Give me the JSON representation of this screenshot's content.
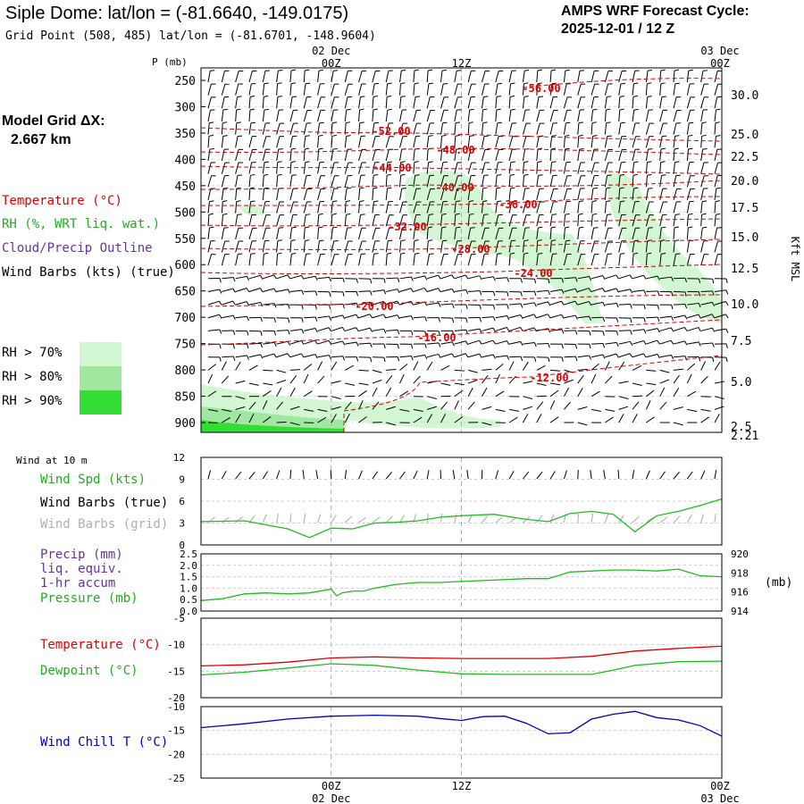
{
  "header": {
    "title": "Siple Dome:  lat/lon = (-81.6640, -149.0175)",
    "subtitle": "Grid Point (508, 485) lat/lon = (-81.6701, -148.9604)",
    "cycle_label": "AMPS WRF Forecast Cycle:",
    "cycle_value": "2025-12-01 / 12  Z",
    "grid_label": "Model Grid ΔX:",
    "grid_value": "2.667 km"
  },
  "legend": {
    "temperature": "Temperature (°C)",
    "rh": "RH (%, WRT liq. wat.)",
    "cloud": "Cloud/Precip Outline",
    "wind": "Wind Barbs (kts) (true)",
    "rh70": "RH > 70%",
    "rh80": "RH > 80%",
    "rh90": "RH > 90%",
    "rh_colors": [
      "#d2f7d2",
      "#a0e8a0",
      "#33dd33"
    ]
  },
  "time_axis": {
    "top_dates": [
      "02 Dec",
      "03 Dec"
    ],
    "labels": [
      "00Z",
      "12Z",
      "00Z"
    ],
    "bottom_dates": [
      "02 Dec",
      "03 Dec"
    ]
  },
  "chart_data": [
    {
      "type": "line",
      "name": "sounding-cross-section",
      "left_axis_title": "P (mb)",
      "right_axis_title": "Kft MSL",
      "pressure_ticks": [
        250,
        300,
        350,
        400,
        450,
        500,
        550,
        600,
        650,
        700,
        750,
        800,
        850,
        900
      ],
      "height_ticks": [
        "30.0",
        "25.0",
        "22.5",
        "20.0",
        "17.5",
        "15.0",
        "12.5",
        "10.0",
        "7.5",
        "5.0",
        "2.5",
        "2.21"
      ],
      "temperature_contours": [
        "-56.00",
        "-52.00",
        "-48.00",
        "-44.00",
        "-40.00",
        "-36.00",
        "-32.00",
        "-28.00",
        "-24.00",
        "-20.00",
        "-16.00",
        "-12.00"
      ],
      "colors": {
        "temperature": "#dd0000",
        "rh": "#22bb22",
        "barb": "#000000"
      }
    },
    {
      "type": "line",
      "name": "surface-wind",
      "title": "Wind at 10 m",
      "series_labels": [
        "Wind Spd (kts)",
        "Wind Barbs (true)",
        "Wind Barbs (grid)"
      ],
      "ylim": [
        0,
        12
      ],
      "yticks": [
        0,
        3,
        6,
        9,
        12
      ],
      "series": [
        {
          "name": "Wind Spd (kts)",
          "color": "#22bb22",
          "x": [
            0,
            4,
            8,
            10,
            12,
            14,
            16,
            18,
            20,
            22,
            24,
            27,
            30,
            32,
            34,
            36,
            38,
            40,
            42,
            44,
            46,
            48
          ],
          "values": [
            3.2,
            3.3,
            2.2,
            1.0,
            2.3,
            2.2,
            3.0,
            3.1,
            3.3,
            3.8,
            4.0,
            4.2,
            3.5,
            3.2,
            4.3,
            4.6,
            4.2,
            1.8,
            4.0,
            4.6,
            5.4,
            6.3
          ]
        }
      ]
    },
    {
      "type": "line",
      "name": "precip-pressure",
      "series_labels": [
        "Precip (mm)",
        "liq. equiv.",
        "1-hr accum",
        "Pressure (mb)"
      ],
      "right_unit": "(mb)",
      "left_ylim": [
        0,
        2.5
      ],
      "left_yticks": [
        "0.0",
        "0.5",
        "1.0",
        "1.5",
        "2.0",
        "2.5"
      ],
      "right_ylim": [
        914,
        920
      ],
      "right_yticks": [
        914,
        916,
        918,
        920
      ],
      "series": [
        {
          "name": "Pressure (mb)",
          "color": "#22bb22",
          "axis": "right",
          "x": [
            0,
            2,
            4,
            6,
            8,
            10,
            12,
            12.5,
            13,
            14,
            15,
            16,
            17,
            18,
            20,
            22,
            24,
            26,
            28,
            30,
            32,
            34,
            36,
            38,
            40,
            42,
            44,
            46,
            48
          ],
          "values": [
            915.1,
            915.3,
            915.8,
            915.9,
            915.8,
            915.9,
            916.3,
            915.6,
            915.9,
            916.1,
            916.1,
            916.4,
            916.6,
            916.8,
            917.0,
            917.0,
            917.1,
            917.2,
            917.3,
            917.4,
            917.4,
            918.1,
            918.2,
            918.3,
            918.3,
            918.2,
            918.4,
            917.7,
            917.6
          ]
        }
      ]
    },
    {
      "type": "line",
      "name": "temperature-dewpoint",
      "series_labels": [
        "Temperature (°C)",
        "Dewpoint (°C)"
      ],
      "ylim": [
        -20,
        -5
      ],
      "yticks": [
        "-5",
        "-10",
        "-15",
        "-20"
      ],
      "series": [
        {
          "name": "Temperature (°C)",
          "color": "#dd0000",
          "x": [
            0,
            4,
            8,
            12,
            16,
            20,
            24,
            28,
            32,
            36,
            40,
            44,
            48
          ],
          "values": [
            -14.0,
            -13.8,
            -13.3,
            -12.5,
            -12.3,
            -12.5,
            -12.6,
            -12.6,
            -12.6,
            -12.2,
            -11.2,
            -10.7,
            -10.3
          ]
        },
        {
          "name": "Dewpoint (°C)",
          "color": "#22bb22",
          "x": [
            0,
            4,
            8,
            12,
            16,
            20,
            24,
            28,
            32,
            36,
            38,
            40,
            44,
            48
          ],
          "values": [
            -15.7,
            -15.2,
            -14.4,
            -13.6,
            -13.9,
            -14.8,
            -15.5,
            -15.6,
            -15.6,
            -15.6,
            -14.8,
            -13.9,
            -13.2,
            -13.1
          ]
        }
      ]
    },
    {
      "type": "line",
      "name": "wind-chill",
      "series_labels": [
        "Wind Chill T (°C)"
      ],
      "ylim": [
        -25,
        -10
      ],
      "yticks": [
        "-10",
        "-15",
        "-20",
        "-25"
      ],
      "series": [
        {
          "name": "Wind Chill T (°C)",
          "color": "#0000bb",
          "x": [
            0,
            4,
            8,
            12,
            16,
            20,
            22,
            24,
            26,
            28,
            30,
            32,
            34,
            36,
            38,
            40,
            42,
            44,
            46,
            48
          ],
          "values": [
            -14.4,
            -13.6,
            -12.6,
            -12.0,
            -11.8,
            -12.0,
            -12.5,
            -12.9,
            -12.1,
            -12.0,
            -13.5,
            -15.7,
            -15.5,
            -12.6,
            -11.6,
            -11.0,
            -12.3,
            -12.8,
            -14.0,
            -16.2
          ]
        }
      ]
    }
  ]
}
